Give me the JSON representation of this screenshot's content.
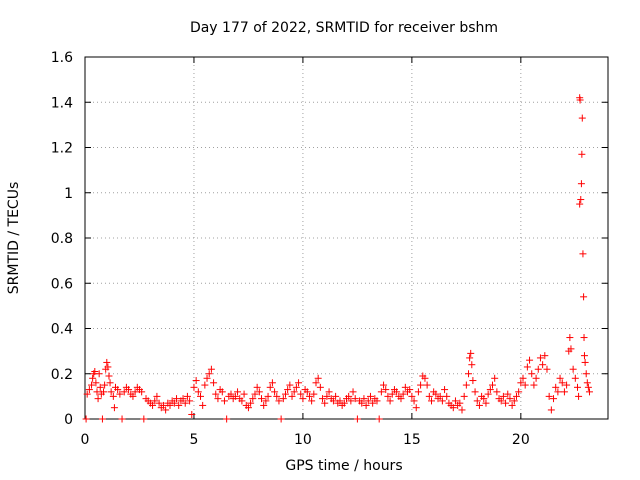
{
  "chart_data": {
    "type": "scatter",
    "title": "Day 177 of 2022, SRMTID for receiver bshm",
    "xlabel": "GPS time / hours",
    "ylabel": "SRMTID / TECUs",
    "xlim": [
      0,
      24
    ],
    "ylim": [
      0,
      1.6
    ],
    "xticks": [
      0,
      5,
      10,
      15,
      20
    ],
    "yticks": [
      0,
      0.2,
      0.4,
      0.6,
      0.8,
      1,
      1.2,
      1.4,
      1.6
    ],
    "xtick_labels": [
      "0",
      "5",
      "10",
      "15",
      "20"
    ],
    "ytick_labels": [
      "0",
      "0.2",
      "0.4",
      "0.6",
      "0.8",
      "1",
      "1.2",
      "1.4",
      "1.6"
    ],
    "grid": true,
    "marker": "+",
    "color": "#ff0000",
    "series": [
      {
        "name": "SRMTID",
        "points": [
          [
            0.05,
            0.0
          ],
          [
            0.1,
            0.11
          ],
          [
            0.2,
            0.13
          ],
          [
            0.3,
            0.15
          ],
          [
            0.35,
            0.18
          ],
          [
            0.4,
            0.2
          ],
          [
            0.45,
            0.21
          ],
          [
            0.5,
            0.16
          ],
          [
            0.55,
            0.12
          ],
          [
            0.6,
            0.09
          ],
          [
            0.65,
            0.2
          ],
          [
            0.7,
            0.14
          ],
          [
            0.75,
            0.11
          ],
          [
            0.8,
            0.0
          ],
          [
            0.85,
            0.12
          ],
          [
            0.9,
            0.15
          ],
          [
            0.95,
            0.22
          ],
          [
            1.0,
            0.25
          ],
          [
            1.05,
            0.23
          ],
          [
            1.1,
            0.19
          ],
          [
            1.15,
            0.16
          ],
          [
            1.2,
            0.12
          ],
          [
            1.3,
            0.1
          ],
          [
            1.35,
            0.05
          ],
          [
            1.4,
            0.14
          ],
          [
            1.5,
            0.13
          ],
          [
            1.6,
            0.11
          ],
          [
            1.7,
            0.0
          ],
          [
            1.8,
            0.12
          ],
          [
            1.9,
            0.14
          ],
          [
            2.0,
            0.13
          ],
          [
            2.1,
            0.11
          ],
          [
            2.2,
            0.1
          ],
          [
            2.3,
            0.12
          ],
          [
            2.4,
            0.14
          ],
          [
            2.5,
            0.13
          ],
          [
            2.6,
            0.12
          ],
          [
            2.7,
            0.0
          ],
          [
            2.8,
            0.09
          ],
          [
            2.9,
            0.08
          ],
          [
            3.0,
            0.07
          ],
          [
            3.1,
            0.06
          ],
          [
            3.2,
            0.08
          ],
          [
            3.3,
            0.1
          ],
          [
            3.4,
            0.07
          ],
          [
            3.5,
            0.05
          ],
          [
            3.6,
            0.06
          ],
          [
            3.7,
            0.04
          ],
          [
            3.8,
            0.07
          ],
          [
            3.9,
            0.06
          ],
          [
            4.0,
            0.08
          ],
          [
            4.1,
            0.07
          ],
          [
            4.2,
            0.09
          ],
          [
            4.3,
            0.06
          ],
          [
            4.4,
            0.08
          ],
          [
            4.5,
            0.09
          ],
          [
            4.6,
            0.07
          ],
          [
            4.7,
            0.1
          ],
          [
            4.8,
            0.08
          ],
          [
            4.9,
            0.02
          ],
          [
            5.0,
            0.14
          ],
          [
            5.1,
            0.17
          ],
          [
            5.2,
            0.12
          ],
          [
            5.3,
            0.1
          ],
          [
            5.4,
            0.06
          ],
          [
            5.5,
            0.15
          ],
          [
            5.6,
            0.18
          ],
          [
            5.7,
            0.2
          ],
          [
            5.8,
            0.22
          ],
          [
            5.9,
            0.16
          ],
          [
            6.0,
            0.11
          ],
          [
            6.1,
            0.09
          ],
          [
            6.2,
            0.13
          ],
          [
            6.3,
            0.12
          ],
          [
            6.4,
            0.08
          ],
          [
            6.5,
            0.0
          ],
          [
            6.6,
            0.1
          ],
          [
            6.7,
            0.11
          ],
          [
            6.8,
            0.09
          ],
          [
            6.9,
            0.1
          ],
          [
            7.0,
            0.12
          ],
          [
            7.1,
            0.09
          ],
          [
            7.2,
            0.08
          ],
          [
            7.3,
            0.11
          ],
          [
            7.4,
            0.06
          ],
          [
            7.5,
            0.05
          ],
          [
            7.6,
            0.07
          ],
          [
            7.7,
            0.09
          ],
          [
            7.8,
            0.11
          ],
          [
            7.9,
            0.14
          ],
          [
            8.0,
            0.12
          ],
          [
            8.1,
            0.09
          ],
          [
            8.2,
            0.06
          ],
          [
            8.3,
            0.08
          ],
          [
            8.4,
            0.1
          ],
          [
            8.5,
            0.14
          ],
          [
            8.6,
            0.16
          ],
          [
            8.7,
            0.12
          ],
          [
            8.8,
            0.1
          ],
          [
            8.9,
            0.08
          ],
          [
            9.0,
            0.0
          ],
          [
            9.1,
            0.09
          ],
          [
            9.2,
            0.11
          ],
          [
            9.3,
            0.13
          ],
          [
            9.4,
            0.15
          ],
          [
            9.5,
            0.1
          ],
          [
            9.6,
            0.12
          ],
          [
            9.7,
            0.14
          ],
          [
            9.8,
            0.16
          ],
          [
            9.9,
            0.11
          ],
          [
            10.0,
            0.09
          ],
          [
            10.1,
            0.13
          ],
          [
            10.2,
            0.12
          ],
          [
            10.3,
            0.1
          ],
          [
            10.4,
            0.08
          ],
          [
            10.5,
            0.11
          ],
          [
            10.6,
            0.16
          ],
          [
            10.7,
            0.18
          ],
          [
            10.8,
            0.14
          ],
          [
            10.9,
            0.09
          ],
          [
            11.0,
            0.07
          ],
          [
            11.1,
            0.1
          ],
          [
            11.2,
            0.12
          ],
          [
            11.3,
            0.09
          ],
          [
            11.4,
            0.08
          ],
          [
            11.5,
            0.1
          ],
          [
            11.6,
            0.07
          ],
          [
            11.7,
            0.08
          ],
          [
            11.8,
            0.06
          ],
          [
            11.9,
            0.07
          ],
          [
            12.0,
            0.09
          ],
          [
            12.1,
            0.1
          ],
          [
            12.2,
            0.08
          ],
          [
            12.3,
            0.12
          ],
          [
            12.4,
            0.09
          ],
          [
            12.5,
            0.0
          ],
          [
            12.6,
            0.08
          ],
          [
            12.7,
            0.07
          ],
          [
            12.8,
            0.09
          ],
          [
            12.9,
            0.06
          ],
          [
            13.0,
            0.08
          ],
          [
            13.1,
            0.1
          ],
          [
            13.2,
            0.07
          ],
          [
            13.3,
            0.09
          ],
          [
            13.4,
            0.08
          ],
          [
            13.5,
            0.0
          ],
          [
            13.6,
            0.12
          ],
          [
            13.7,
            0.15
          ],
          [
            13.8,
            0.13
          ],
          [
            13.9,
            0.1
          ],
          [
            14.0,
            0.08
          ],
          [
            14.1,
            0.11
          ],
          [
            14.2,
            0.13
          ],
          [
            14.3,
            0.12
          ],
          [
            14.4,
            0.1
          ],
          [
            14.5,
            0.09
          ],
          [
            14.6,
            0.11
          ],
          [
            14.7,
            0.14
          ],
          [
            14.8,
            0.12
          ],
          [
            14.9,
            0.13
          ],
          [
            15.0,
            0.1
          ],
          [
            15.1,
            0.08
          ],
          [
            15.2,
            0.05
          ],
          [
            15.3,
            0.12
          ],
          [
            15.4,
            0.15
          ],
          [
            15.5,
            0.19
          ],
          [
            15.6,
            0.18
          ],
          [
            15.7,
            0.15
          ],
          [
            15.8,
            0.1
          ],
          [
            15.9,
            0.08
          ],
          [
            16.0,
            0.12
          ],
          [
            16.1,
            0.11
          ],
          [
            16.2,
            0.09
          ],
          [
            16.3,
            0.1
          ],
          [
            16.4,
            0.08
          ],
          [
            16.5,
            0.13
          ],
          [
            16.6,
            0.1
          ],
          [
            16.7,
            0.07
          ],
          [
            16.8,
            0.06
          ],
          [
            16.9,
            0.05
          ],
          [
            17.0,
            0.08
          ],
          [
            17.1,
            0.06
          ],
          [
            17.2,
            0.07
          ],
          [
            17.3,
            0.04
          ],
          [
            17.4,
            0.1
          ],
          [
            17.5,
            0.15
          ],
          [
            17.6,
            0.2
          ],
          [
            17.65,
            0.27
          ],
          [
            17.7,
            0.29
          ],
          [
            17.75,
            0.24
          ],
          [
            17.8,
            0.17
          ],
          [
            17.9,
            0.12
          ],
          [
            18.0,
            0.08
          ],
          [
            18.1,
            0.06
          ],
          [
            18.2,
            0.1
          ],
          [
            18.3,
            0.09
          ],
          [
            18.4,
            0.07
          ],
          [
            18.5,
            0.11
          ],
          [
            18.6,
            0.13
          ],
          [
            18.7,
            0.15
          ],
          [
            18.8,
            0.18
          ],
          [
            18.9,
            0.12
          ],
          [
            19.0,
            0.09
          ],
          [
            19.1,
            0.08
          ],
          [
            19.2,
            0.1
          ],
          [
            19.3,
            0.07
          ],
          [
            19.4,
            0.11
          ],
          [
            19.5,
            0.09
          ],
          [
            19.6,
            0.06
          ],
          [
            19.7,
            0.08
          ],
          [
            19.8,
            0.1
          ],
          [
            19.9,
            0.12
          ],
          [
            20.0,
            0.16
          ],
          [
            20.1,
            0.18
          ],
          [
            20.2,
            0.15
          ],
          [
            20.3,
            0.23
          ],
          [
            20.4,
            0.26
          ],
          [
            20.5,
            0.2
          ],
          [
            20.6,
            0.15
          ],
          [
            20.7,
            0.18
          ],
          [
            20.8,
            0.22
          ],
          [
            20.9,
            0.27
          ],
          [
            21.0,
            0.24
          ],
          [
            21.1,
            0.28
          ],
          [
            21.2,
            0.22
          ],
          [
            21.3,
            0.1
          ],
          [
            21.4,
            0.04
          ],
          [
            21.5,
            0.09
          ],
          [
            21.6,
            0.14
          ],
          [
            21.7,
            0.12
          ],
          [
            21.8,
            0.18
          ],
          [
            21.9,
            0.16
          ],
          [
            22.0,
            0.12
          ],
          [
            22.1,
            0.15
          ],
          [
            22.2,
            0.3
          ],
          [
            22.25,
            0.36
          ],
          [
            22.3,
            0.31
          ],
          [
            22.4,
            0.22
          ],
          [
            22.5,
            0.18
          ],
          [
            22.6,
            0.14
          ],
          [
            22.65,
            0.1
          ],
          [
            22.7,
            0.95
          ],
          [
            22.7,
            1.42
          ],
          [
            22.72,
            1.41
          ],
          [
            22.75,
            0.97
          ],
          [
            22.78,
            1.04
          ],
          [
            22.8,
            1.17
          ],
          [
            22.82,
            1.33
          ],
          [
            22.85,
            0.73
          ],
          [
            22.88,
            0.54
          ],
          [
            22.9,
            0.36
          ],
          [
            22.92,
            0.28
          ],
          [
            22.95,
            0.25
          ],
          [
            23.0,
            0.2
          ],
          [
            23.05,
            0.16
          ],
          [
            23.1,
            0.14
          ],
          [
            23.15,
            0.12
          ]
        ]
      }
    ]
  }
}
